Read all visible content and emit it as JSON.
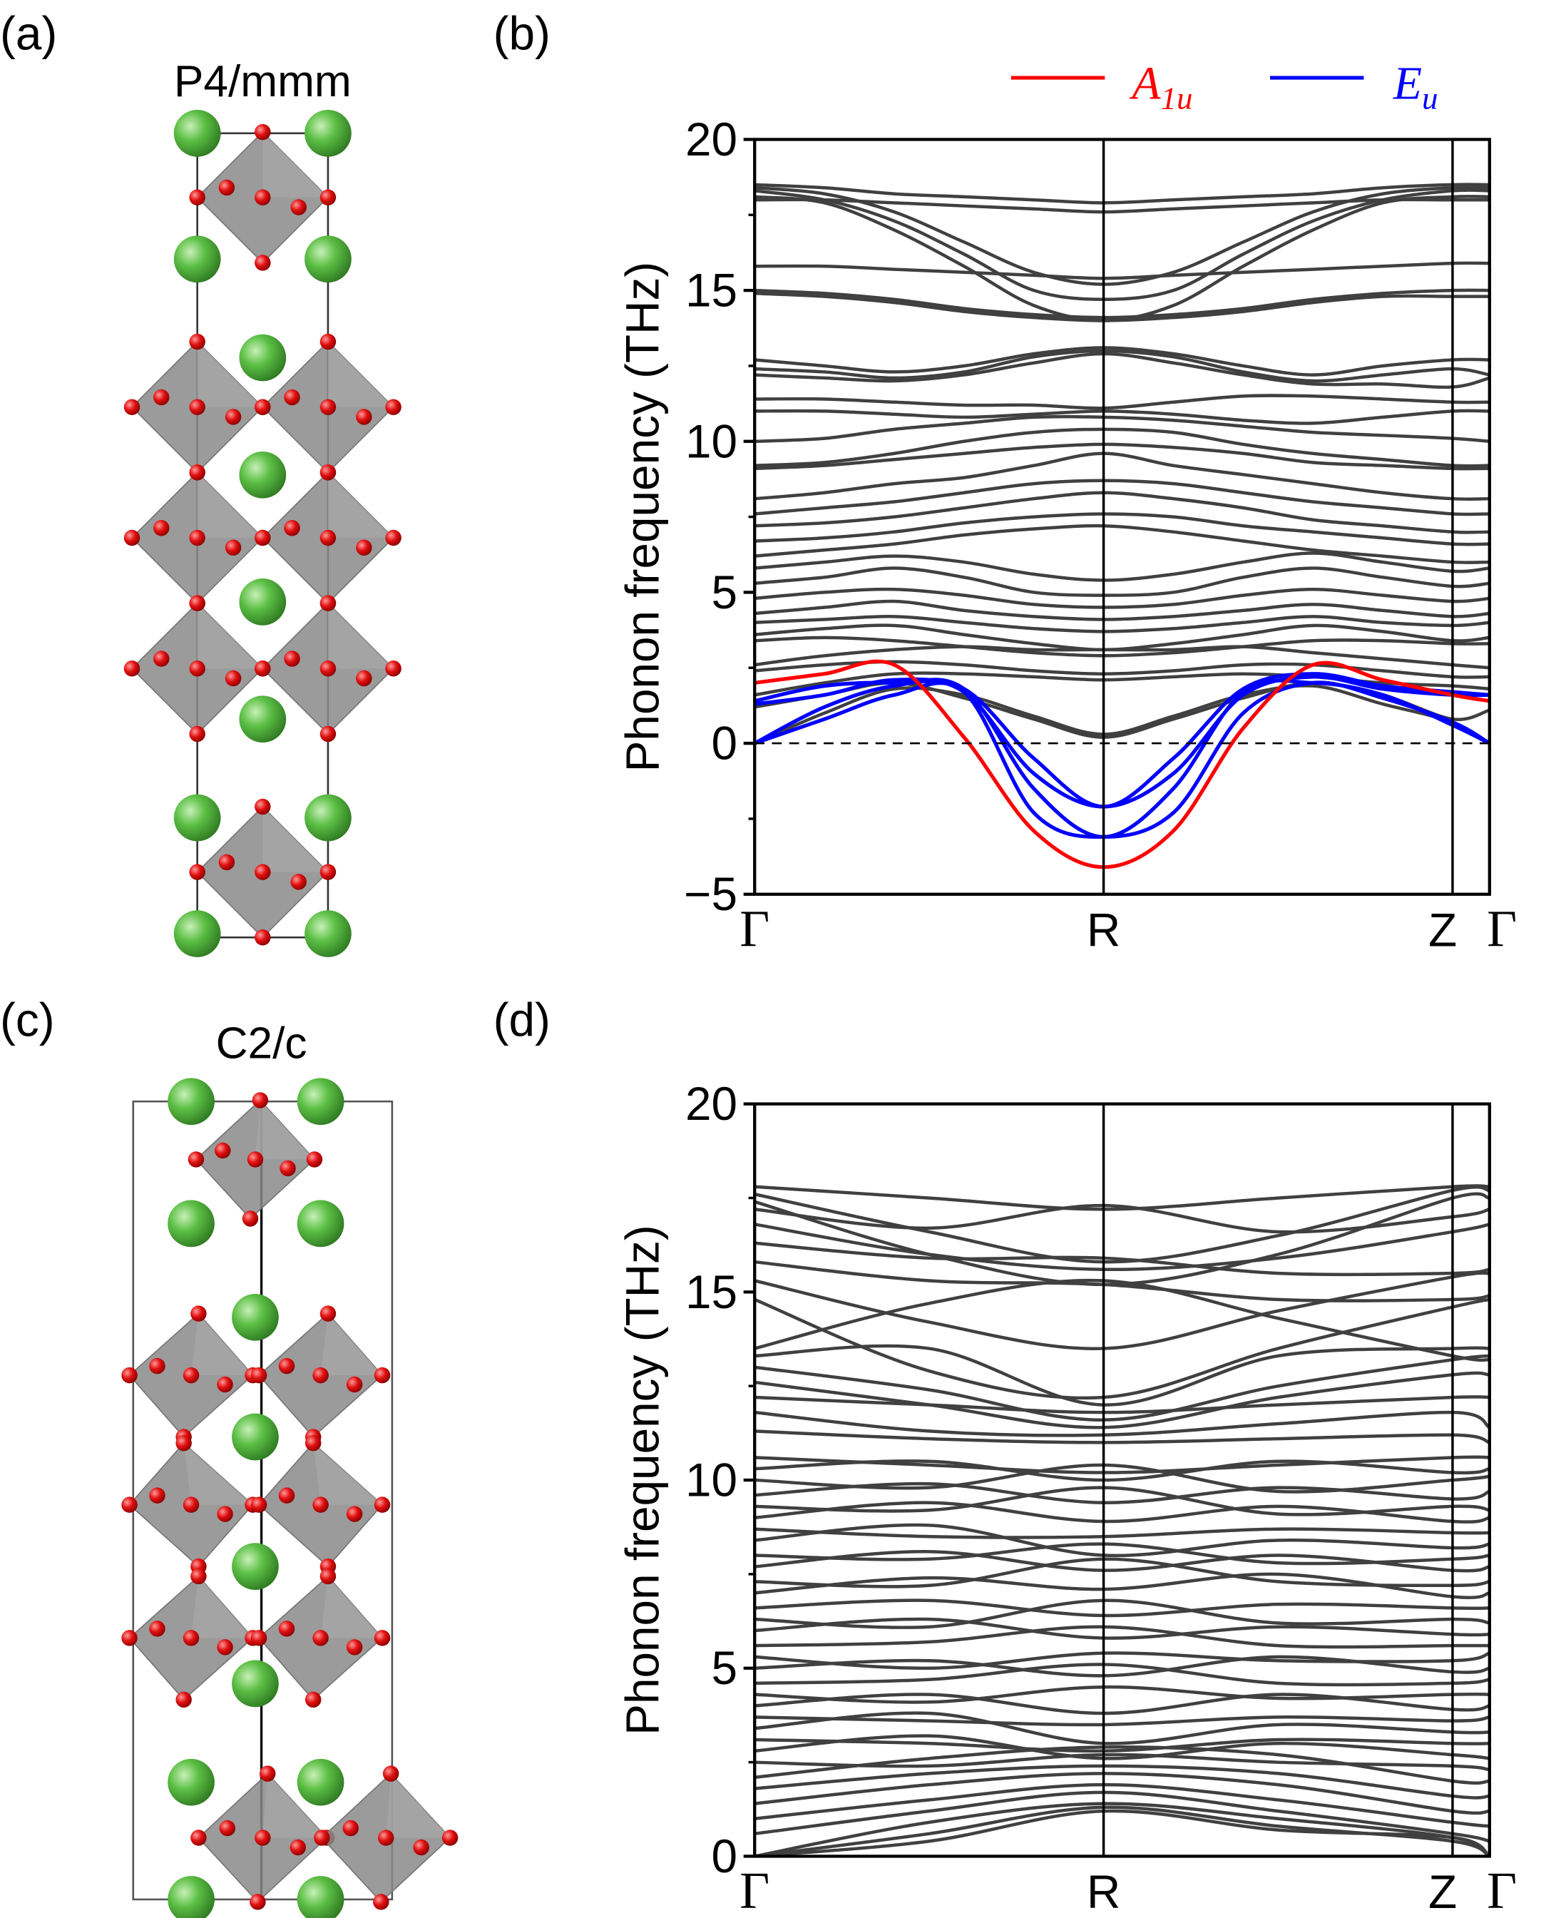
{
  "panels": {
    "a": "(a)",
    "b": "(b)",
    "c": "(c)",
    "d": "(d)"
  },
  "structures": [
    {
      "panel": "a",
      "space_group": "P4/mmm"
    },
    {
      "panel": "c",
      "space_group": "C2/c"
    }
  ],
  "colors": {
    "band": "#404040",
    "A1u": "#ff0000",
    "Eu": "#0000ff",
    "green_atom": "#4caf3a",
    "red_atom": "#e00000",
    "octahedron": "#8a8a8a"
  },
  "chart_data": [
    {
      "panel": "b",
      "type": "line",
      "title": "",
      "xlabel": "",
      "ylabel": "Phonon frequency (THz)",
      "ylim": [
        -5,
        20
      ],
      "yticks": [
        -5,
        0,
        5,
        10,
        15,
        20
      ],
      "ytick_labels": [
        "−5",
        "0",
        "5",
        "10",
        "15",
        "20"
      ],
      "xticks": [
        {
          "label": "Γ",
          "k": 0
        },
        {
          "label": "R",
          "k": 1
        },
        {
          "label": "Z",
          "k": 2
        },
        {
          "label": "Γ",
          "k": 2.106
        }
      ],
      "zero_line": true,
      "legend": [
        {
          "mode": "A1u",
          "symbol": "A",
          "subscript": "1u",
          "color": "#ff0000"
        },
        {
          "mode": "Eu",
          "symbol": "E",
          "subscript": "u",
          "color": "#0000ff"
        }
      ],
      "legend_position": "top-right",
      "k": [
        0,
        0.2,
        0.4,
        0.6,
        0.8,
        1,
        1.2,
        1.4,
        1.6,
        1.8,
        2,
        2.106
      ],
      "gray_bands": [
        [
          18.5,
          18.4,
          18.2,
          18.1,
          18.0,
          17.9,
          18.0,
          18.1,
          18.2,
          18.4,
          18.5,
          18.5
        ],
        [
          18.4,
          18.2,
          17.6,
          16.6,
          15.6,
          15.2,
          15.6,
          16.6,
          17.6,
          18.2,
          18.4,
          18.4
        ],
        [
          18.3,
          18.0,
          17.3,
          16.2,
          15.0,
          14.7,
          15.0,
          16.2,
          17.3,
          18.0,
          18.3,
          18.3
        ],
        [
          18.1,
          17.9,
          17.0,
          15.8,
          14.5,
          14.0,
          14.5,
          15.8,
          17.0,
          17.9,
          18.1,
          18.1
        ],
        [
          18.0,
          18.0,
          17.9,
          17.8,
          17.7,
          17.6,
          17.7,
          17.8,
          17.9,
          18.0,
          18.0,
          18.0
        ],
        [
          15.8,
          15.8,
          15.7,
          15.6,
          15.5,
          15.4,
          15.5,
          15.6,
          15.7,
          15.8,
          15.9,
          15.9
        ],
        [
          15.0,
          14.9,
          14.7,
          14.4,
          14.2,
          14.1,
          14.2,
          14.4,
          14.7,
          14.9,
          15.0,
          15.0
        ],
        [
          14.9,
          14.8,
          14.6,
          14.3,
          14.1,
          14.0,
          14.1,
          14.3,
          14.6,
          14.8,
          14.8,
          14.8
        ],
        [
          12.7,
          12.5,
          12.3,
          12.5,
          12.9,
          13.1,
          12.9,
          12.5,
          12.2,
          12.5,
          12.7,
          12.7
        ],
        [
          12.4,
          12.3,
          12.1,
          12.3,
          12.8,
          13.0,
          12.8,
          12.3,
          12.0,
          12.2,
          12.4,
          12.2
        ],
        [
          12.2,
          12.1,
          12.0,
          12.2,
          12.6,
          12.9,
          12.6,
          12.2,
          11.9,
          11.9,
          11.8,
          12.1
        ],
        [
          11.4,
          11.4,
          11.3,
          11.2,
          11.2,
          11.1,
          11.3,
          11.5,
          11.5,
          11.4,
          11.3,
          11.3
        ],
        [
          11.0,
          11.0,
          10.9,
          10.8,
          10.9,
          11.0,
          10.9,
          10.7,
          10.6,
          10.8,
          11.0,
          11.0
        ],
        [
          10.0,
          10.1,
          10.4,
          10.6,
          10.8,
          10.8,
          10.7,
          10.5,
          10.3,
          10.2,
          10.1,
          10.0
        ],
        [
          9.2,
          9.3,
          9.6,
          10.0,
          10.3,
          10.4,
          10.3,
          9.9,
          9.6,
          9.4,
          9.2,
          9.2
        ],
        [
          9.1,
          9.2,
          9.4,
          9.6,
          9.8,
          9.9,
          9.8,
          9.6,
          9.3,
          9.2,
          9.1,
          9.1
        ],
        [
          8.1,
          8.3,
          8.6,
          8.8,
          9.2,
          9.6,
          9.2,
          8.9,
          8.6,
          8.3,
          8.1,
          8.1
        ],
        [
          7.6,
          7.8,
          8.0,
          8.3,
          8.6,
          8.7,
          8.6,
          8.3,
          8.0,
          7.8,
          7.6,
          7.6
        ],
        [
          7.2,
          7.3,
          7.5,
          7.8,
          8.1,
          8.3,
          8.1,
          7.8,
          7.4,
          7.2,
          7.0,
          7.0
        ],
        [
          6.7,
          6.8,
          7.0,
          7.3,
          7.5,
          7.6,
          7.5,
          7.2,
          7.0,
          6.8,
          6.6,
          6.6
        ],
        [
          6.2,
          6.4,
          6.6,
          6.9,
          7.1,
          7.2,
          7.0,
          6.7,
          6.4,
          6.2,
          6.0,
          6.0
        ],
        [
          5.8,
          6.0,
          6.2,
          6.0,
          5.6,
          5.4,
          5.6,
          6.0,
          6.3,
          6.0,
          5.7,
          5.8
        ],
        [
          5.3,
          5.5,
          5.8,
          5.5,
          5.0,
          4.9,
          5.0,
          5.5,
          5.8,
          5.5,
          5.2,
          5.3
        ],
        [
          4.8,
          5.0,
          5.1,
          4.9,
          4.6,
          4.5,
          4.6,
          4.9,
          5.1,
          4.9,
          4.7,
          4.8
        ],
        [
          4.3,
          4.5,
          4.7,
          4.4,
          4.2,
          4.1,
          4.2,
          4.4,
          4.6,
          4.4,
          4.2,
          4.3
        ],
        [
          4.0,
          4.1,
          4.2,
          4.0,
          3.8,
          3.7,
          3.8,
          4.0,
          4.2,
          4.0,
          3.9,
          4.0
        ],
        [
          3.6,
          3.8,
          3.9,
          3.6,
          3.3,
          3.1,
          3.3,
          3.6,
          3.9,
          3.7,
          3.4,
          3.5
        ],
        [
          3.4,
          3.5,
          3.4,
          3.2,
          3.0,
          2.9,
          3.0,
          3.2,
          3.4,
          3.4,
          3.3,
          3.3
        ],
        [
          2.6,
          2.9,
          3.1,
          3.2,
          3.1,
          3.1,
          3.1,
          3.2,
          3.0,
          2.8,
          2.6,
          2.5
        ],
        [
          2.4,
          2.6,
          2.7,
          2.6,
          2.4,
          2.3,
          2.4,
          2.6,
          2.6,
          2.4,
          2.2,
          2.2
        ],
        [
          1.6,
          2.0,
          2.3,
          2.3,
          2.2,
          2.1,
          2.2,
          2.3,
          2.2,
          2.0,
          1.9,
          1.8
        ],
        [
          1.2,
          1.6,
          2.0,
          1.5,
          0.8,
          0.2,
          0.8,
          1.5,
          2.0,
          1.6,
          0.8,
          1.1
        ],
        [
          0,
          1.0,
          1.8,
          1.6,
          0.9,
          0.3,
          0.9,
          1.6,
          1.9,
          1.3,
          0.7,
          0
        ]
      ],
      "colored_bands": [
        {
          "mode": "Eu",
          "values": [
            1.3,
            1.6,
            2.1,
            1.7,
            -1.0,
            -2.1,
            -1.0,
            1.6,
            2.2,
            1.8,
            1.6,
            1.6
          ]
        },
        {
          "mode": "Eu",
          "values": [
            1.4,
            1.9,
            2.0,
            1.8,
            -0.5,
            -2.1,
            -0.5,
            1.8,
            2.3,
            1.9,
            1.7,
            1.6
          ]
        },
        {
          "mode": "Eu",
          "values": [
            0,
            1.2,
            1.9,
            1.8,
            -1.5,
            -3.1,
            -1.5,
            1.7,
            2.0,
            1.6,
            0.6,
            0
          ]
        },
        {
          "mode": "Eu",
          "values": [
            0,
            0.8,
            1.6,
            1.7,
            -2.3,
            -3.1,
            -2.3,
            1.0,
            2.0,
            1.5,
            0.7,
            0
          ]
        },
        {
          "mode": "A1u",
          "values": [
            2.0,
            2.3,
            2.6,
            0.2,
            -2.9,
            -4.1,
            -2.9,
            0.5,
            2.6,
            2.1,
            1.6,
            1.4
          ]
        }
      ]
    },
    {
      "panel": "d",
      "type": "line",
      "title": "",
      "xlabel": "",
      "ylabel": "Phonon frequency (THz)",
      "ylim": [
        0,
        20
      ],
      "yticks": [
        0,
        5,
        10,
        15,
        20
      ],
      "ytick_labels": [
        "0",
        "5",
        "10",
        "15",
        "20"
      ],
      "xticks": [
        {
          "label": "Γ",
          "k": 0
        },
        {
          "label": "R",
          "k": 1
        },
        {
          "label": "Z",
          "k": 2
        },
        {
          "label": "Γ",
          "k": 2.106
        }
      ],
      "zero_line": false,
      "k": [
        0,
        0.5,
        1,
        1.5,
        2,
        2.106
      ],
      "gray_bands": [
        [
          17.8,
          17.5,
          17.2,
          17.5,
          17.8,
          17.8
        ],
        [
          17.6,
          16.6,
          15.8,
          16.5,
          17.7,
          17.7
        ],
        [
          17.4,
          16.0,
          15.2,
          16.0,
          17.5,
          17.5
        ],
        [
          17.2,
          16.7,
          17.3,
          16.6,
          17.0,
          17.2
        ],
        [
          16.8,
          16.0,
          15.6,
          15.9,
          16.6,
          16.8
        ],
        [
          16.3,
          15.9,
          15.9,
          15.5,
          15.5,
          15.6
        ],
        [
          15.8,
          15.3,
          15.2,
          14.8,
          14.8,
          14.9
        ],
        [
          15.3,
          14.2,
          13.5,
          14.5,
          15.4,
          15.5
        ],
        [
          14.8,
          12.9,
          12.2,
          13.5,
          14.6,
          14.8
        ],
        [
          13.5,
          14.7,
          15.3,
          14.3,
          13.3,
          13.2
        ],
        [
          13.3,
          13.5,
          12.0,
          13.3,
          13.5,
          13.5
        ],
        [
          13.0,
          12.4,
          11.6,
          12.5,
          13.2,
          13.3
        ],
        [
          12.6,
          12.0,
          11.4,
          12.2,
          12.8,
          12.8
        ],
        [
          12.2,
          12.0,
          11.8,
          12.0,
          12.2,
          12.2
        ],
        [
          11.8,
          11.3,
          11.2,
          11.5,
          11.8,
          11.4
        ],
        [
          11.3,
          11.1,
          11.0,
          11.1,
          11.2,
          11.0
        ],
        [
          10.6,
          10.4,
          10.2,
          10.4,
          10.6,
          10.6
        ],
        [
          10.3,
          10.5,
          10.0,
          10.5,
          10.2,
          10.3
        ],
        [
          10.0,
          9.8,
          10.4,
          9.7,
          10.0,
          10.1
        ],
        [
          9.6,
          9.9,
          9.4,
          9.8,
          9.5,
          9.7
        ],
        [
          9.3,
          9.2,
          9.8,
          9.1,
          9.3,
          9.2
        ],
        [
          9.0,
          9.4,
          8.9,
          9.3,
          8.9,
          9.0
        ],
        [
          8.7,
          8.5,
          8.5,
          8.7,
          8.6,
          8.6
        ],
        [
          8.4,
          8.8,
          8.0,
          8.4,
          8.2,
          8.3
        ],
        [
          8.0,
          7.9,
          8.3,
          7.8,
          7.9,
          8.0
        ],
        [
          7.7,
          8.1,
          7.6,
          8.0,
          7.6,
          7.7
        ],
        [
          7.3,
          7.2,
          7.9,
          7.3,
          7.2,
          7.3
        ],
        [
          7.0,
          7.4,
          7.1,
          7.5,
          6.9,
          7.0
        ],
        [
          6.6,
          6.8,
          6.4,
          6.7,
          6.6,
          6.6
        ],
        [
          6.3,
          6.1,
          6.8,
          6.2,
          6.3,
          6.2
        ],
        [
          6.0,
          6.3,
          5.8,
          6.1,
          5.9,
          5.9
        ],
        [
          5.6,
          5.7,
          6.1,
          5.6,
          5.6,
          5.6
        ],
        [
          5.3,
          5.0,
          5.4,
          5.2,
          5.2,
          5.4
        ],
        [
          5.0,
          5.2,
          4.8,
          5.3,
          4.9,
          5.0
        ],
        [
          4.6,
          4.7,
          5.1,
          4.6,
          4.6,
          4.7
        ],
        [
          4.3,
          4.1,
          4.5,
          4.2,
          4.3,
          4.3
        ],
        [
          4.0,
          4.3,
          3.8,
          4.3,
          3.9,
          4.0
        ],
        [
          3.7,
          3.6,
          3.5,
          3.7,
          3.6,
          3.7
        ],
        [
          3.4,
          3.8,
          3.0,
          3.5,
          3.3,
          3.3
        ],
        [
          3.1,
          3.0,
          2.8,
          3.1,
          3.0,
          3.0
        ],
        [
          2.8,
          3.2,
          2.6,
          3.0,
          2.7,
          2.6
        ],
        [
          2.5,
          2.4,
          2.7,
          2.5,
          2.4,
          2.3
        ],
        [
          2.1,
          2.6,
          2.9,
          2.7,
          2.0,
          2.0
        ],
        [
          1.8,
          2.2,
          2.4,
          2.2,
          1.6,
          1.6
        ],
        [
          1.4,
          1.9,
          2.2,
          1.9,
          1.2,
          1.2
        ],
        [
          1.0,
          1.5,
          1.9,
          1.5,
          0.9,
          0.8
        ],
        [
          0.6,
          1.2,
          1.7,
          1.2,
          0.6,
          0.4
        ],
        [
          0,
          0.9,
          1.4,
          1.0,
          0.5,
          0
        ],
        [
          0,
          0.6,
          1.3,
          0.8,
          0.4,
          0
        ],
        [
          0,
          0.4,
          1.2,
          0.7,
          0.5,
          0
        ]
      ],
      "colored_bands": []
    }
  ]
}
